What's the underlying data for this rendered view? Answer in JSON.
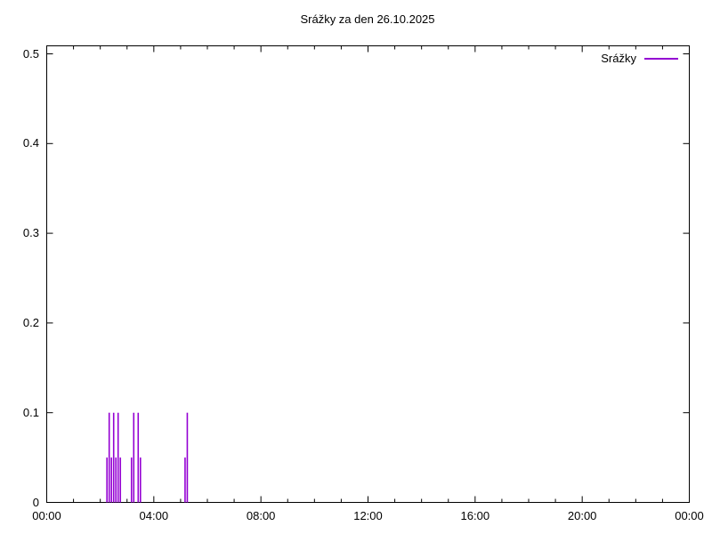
{
  "title": "Srážky za den 26.10.2025",
  "legend": {
    "label": "Srážky",
    "color": "#9400d3",
    "position": "top-right-inside"
  },
  "chart_data": {
    "type": "bar",
    "style": "impulses",
    "title": "Srážky za den 26.10.2025",
    "xlabel": "",
    "ylabel": "",
    "grid": false,
    "border_color": "#000000",
    "x_axis": {
      "range_hours": [
        0,
        24
      ],
      "major_tick_interval_hours": 4,
      "minor_tick_interval_hours": 1,
      "major_tick_hours": [
        0,
        4,
        8,
        12,
        16,
        20,
        24
      ],
      "tick_labels": [
        "00:00",
        "04:00",
        "08:00",
        "12:00",
        "16:00",
        "20:00",
        "00:00"
      ]
    },
    "y_axis": {
      "min": 0,
      "max": 0.5,
      "ticks": [
        0,
        0.1,
        0.2,
        0.3,
        0.4,
        0.5
      ],
      "tick_labels": [
        "0",
        "0.1",
        "0.2",
        "0.3",
        "0.4",
        "0.5"
      ]
    },
    "series": [
      {
        "name": "Srážky",
        "color": "#9400d3",
        "points": [
          {
            "time": "02:15",
            "value": 0.05
          },
          {
            "time": "02:20",
            "value": 0.1
          },
          {
            "time": "02:25",
            "value": 0.05
          },
          {
            "time": "02:30",
            "value": 0.1
          },
          {
            "time": "02:35",
            "value": 0.05
          },
          {
            "time": "02:40",
            "value": 0.1
          },
          {
            "time": "02:45",
            "value": 0.05
          },
          {
            "time": "03:10",
            "value": 0.05
          },
          {
            "time": "03:15",
            "value": 0.1
          },
          {
            "time": "03:25",
            "value": 0.1
          },
          {
            "time": "03:30",
            "value": 0.05
          },
          {
            "time": "05:10",
            "value": 0.05
          },
          {
            "time": "05:15",
            "value": 0.1
          }
        ]
      }
    ]
  }
}
